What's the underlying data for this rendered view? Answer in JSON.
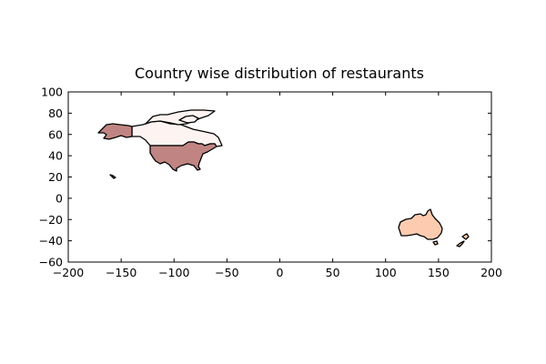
{
  "map": {
    "title": "Country wise distribution of restaurants",
    "x_axis": {
      "range": [
        -200,
        200
      ],
      "ticks": [
        -200,
        -150,
        -100,
        -50,
        0,
        50,
        100,
        150,
        200
      ]
    },
    "y_axis": {
      "range": [
        -60,
        100
      ],
      "ticks": [
        -60,
        -40,
        -20,
        0,
        20,
        40,
        60,
        80,
        100
      ]
    },
    "x_tick_labels": [
      "−200",
      "−150",
      "−100",
      "−50",
      "0",
      "50",
      "100",
      "150",
      "200"
    ],
    "y_tick_labels": [
      "−60",
      "−40",
      "−20",
      "0",
      "20",
      "40",
      "60",
      "80",
      "100"
    ],
    "colors": {
      "alaska": "#c08582",
      "usa": "#c08582",
      "canada": "#fdf4f1",
      "canada_islands": "#fdf4f1",
      "hawaii": "#c08582",
      "australia": "#fdccb0",
      "new_zealand": "#fdccb0"
    }
  }
}
